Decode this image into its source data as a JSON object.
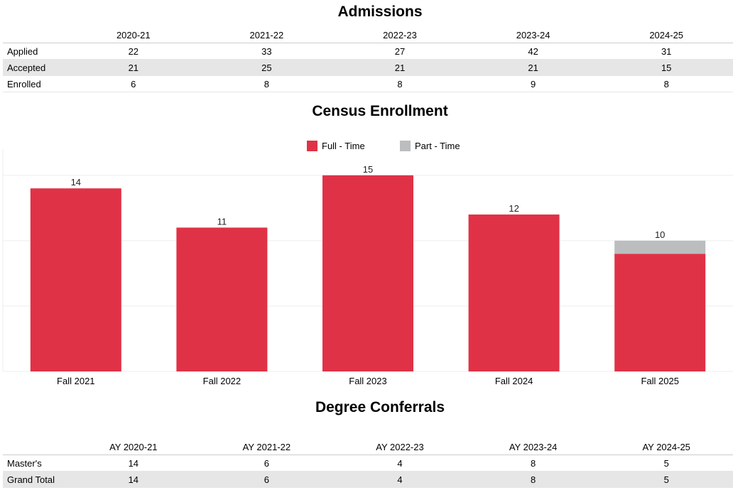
{
  "admissions": {
    "title": "Admissions",
    "columns": [
      "2020-21",
      "2021-22",
      "2022-23",
      "2023-24",
      "2024-25"
    ],
    "rows": [
      {
        "label": "Applied",
        "values": [
          "22",
          "33",
          "27",
          "42",
          "31"
        ]
      },
      {
        "label": "Accepted",
        "values": [
          "21",
          "25",
          "21",
          "21",
          "15"
        ]
      },
      {
        "label": "Enrolled",
        "values": [
          "6",
          "8",
          "8",
          "9",
          "8"
        ]
      }
    ]
  },
  "chart_data": {
    "type": "bar",
    "stacked": true,
    "title": "Census Enrollment",
    "categories": [
      "Fall 2021",
      "Fall 2022",
      "Fall 2023",
      "Fall 2024",
      "Fall 2025"
    ],
    "series": [
      {
        "name": "Full - Time",
        "color": "#e03246",
        "values": [
          14,
          11,
          15,
          12,
          9
        ]
      },
      {
        "name": "Part - Time",
        "color": "#bbbdbe",
        "values": [
          0,
          0,
          0,
          0,
          1
        ]
      }
    ],
    "totals": [
      "14",
      "11",
      "15",
      "12",
      "10"
    ],
    "ylim": [
      0,
      17
    ],
    "grid": true,
    "legend": "top-center",
    "xlabel": "",
    "ylabel": ""
  },
  "degrees": {
    "title": "Degree Conferrals",
    "columns": [
      "AY 2020-21",
      "AY 2021-22",
      "AY 2022-23",
      "AY 2023-24",
      "AY 2024-25"
    ],
    "rows": [
      {
        "label": "Master's",
        "values": [
          "14",
          "6",
          "4",
          "8",
          "5"
        ]
      },
      {
        "label": "Grand Total",
        "values": [
          "14",
          "6",
          "4",
          "8",
          "5"
        ]
      }
    ]
  }
}
